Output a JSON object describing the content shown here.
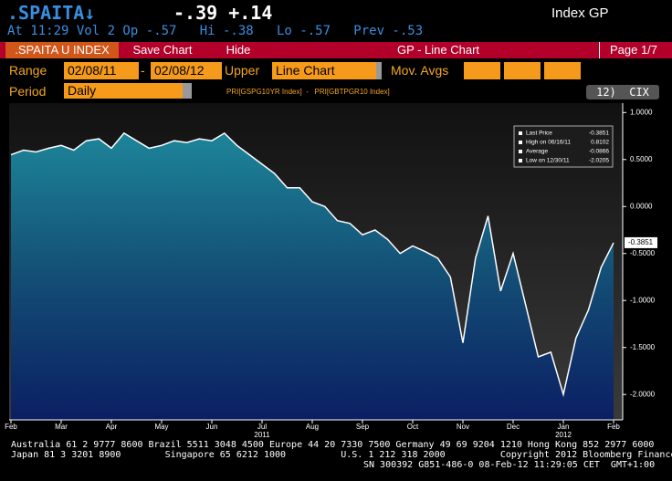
{
  "header": {
    "ticker": ".SPAITA↓",
    "quote": "-.39 +.14",
    "security": "Index GP",
    "stats_line": "At 11:29 Vol 2 Op -.57   Hi -.38   Lo -.57   Prev -.53"
  },
  "toolbar": {
    "security_tab": ".SPAITA U INDEX",
    "save": "Save Chart",
    "hide": "Hide",
    "title": "GP - Line Chart",
    "page": "Page 1/7"
  },
  "controls": {
    "range_label": "Range",
    "start": "02/08/11",
    "dash": "-",
    "end": "02/08/12",
    "upper_label": "Upper",
    "upper_value": "Line Chart",
    "mov_avgs_label": "Mov. Avgs",
    "period_label": "Period",
    "period_value": "Daily",
    "formula": "PRI[GSPG10YR Index]  -   PRI[GBTPGR10 Index]",
    "cix": "12)  CIX"
  },
  "chart_data": {
    "type": "line",
    "color": "#ffffff",
    "categories": [
      "Feb",
      null,
      null,
      null,
      "Mar",
      null,
      null,
      null,
      "Apr",
      null,
      null,
      null,
      "May",
      null,
      null,
      null,
      "Jun",
      null,
      null,
      null,
      "Jul",
      null,
      null,
      null,
      "Aug",
      null,
      null,
      null,
      "Sep",
      null,
      null,
      null,
      "Oct",
      null,
      null,
      null,
      "Nov",
      null,
      null,
      null,
      "Dec",
      null,
      null,
      null,
      "Jan",
      null,
      null,
      null,
      "Feb"
    ],
    "values": [
      0.55,
      0.6,
      0.58,
      0.62,
      0.65,
      0.6,
      0.7,
      0.72,
      0.62,
      0.78,
      0.7,
      0.62,
      0.65,
      0.7,
      0.68,
      0.72,
      0.7,
      0.78,
      0.65,
      0.55,
      0.45,
      0.35,
      0.2,
      0.2,
      0.05,
      0.0,
      -0.15,
      -0.18,
      -0.3,
      -0.25,
      -0.35,
      -0.5,
      -0.42,
      -0.48,
      -0.55,
      -0.75,
      -1.45,
      -0.55,
      -0.1,
      -0.9,
      -0.5,
      -1.05,
      -1.6,
      -1.55,
      -2.0,
      -1.4,
      -1.1,
      -0.65,
      -0.3851
    ],
    "year_labels": [
      "2011",
      "2012"
    ],
    "ylim": [
      -2.27,
      1.1
    ],
    "yticks": [
      {
        "value": 1,
        "label": "1.0000"
      },
      {
        "value": 0.5,
        "label": "0.5000"
      },
      {
        "value": 0,
        "label": "0.0000"
      },
      {
        "value": -0.5,
        "label": "-0.5000"
      },
      {
        "value": -1,
        "label": "-1.0000"
      },
      {
        "value": -1.5,
        "label": "-1.5000"
      },
      {
        "value": -2,
        "label": "-2.0000"
      }
    ],
    "stats": [
      {
        "label": "Last Price",
        "value": -0.3851
      },
      {
        "label": "High on 06/16/11",
        "value": 0.8102
      },
      {
        "label": "Average",
        "value": -0.0866
      },
      {
        "label": "Low on 12/30/11",
        "value": -2.0205
      }
    ]
  },
  "footer": [
    "Australia 61 2 9777 8600 Brazil 5511 3048 4500 Europe 44 20 7330 7500 Germany 49 69 9204 1210 Hong Kong 852 2977 6000",
    "Japan 81 3 3201 8900        Singapore 65 6212 1000          U.S. 1 212 318 2000          Copyright 2012 Bloomberg Finance L.P.",
    "SN 300392 G851-486-0 08-Feb-12 11:29:05 CET  GMT+1:00"
  ]
}
